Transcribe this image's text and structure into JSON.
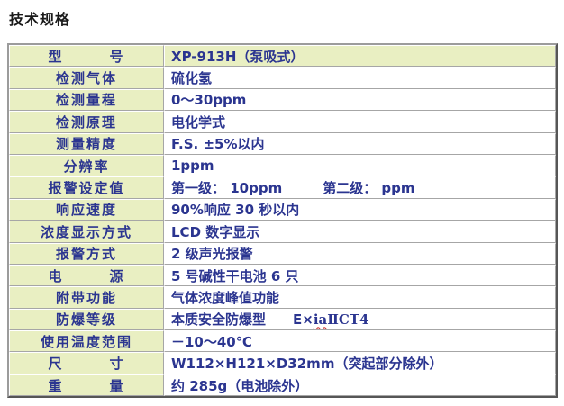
{
  "title": "技术规格",
  "colors": {
    "label_cell_bg": "#e9efc2",
    "value_cell_bg": "#ffffff",
    "table_text": "#2b3590",
    "title_text": "#1a1a1a",
    "border_light": "#ffffff",
    "border_gray": "#a6a6a6",
    "border_dark": "#565656",
    "spellcheck_underline": "#cc2a2a"
  },
  "table": {
    "rows": [
      {
        "label": "型　　　号",
        "value": "XP-913H（泵吸式）",
        "header": true
      },
      {
        "label": "检测气体",
        "value": "硫化氢"
      },
      {
        "label": "检测量程",
        "value": "0～30ppm"
      },
      {
        "label": "检测原理",
        "value": "电化学式"
      },
      {
        "label": "测量精度",
        "value": "F.S. ±5%以内"
      },
      {
        "label": "分辨率",
        "value": "1ppm"
      },
      {
        "label": "报警设定值",
        "value": "第一级： 10ppm　　　第二级： ppm"
      },
      {
        "label": "响应速度",
        "value": "90%响应 30 秒以内"
      },
      {
        "label": "浓度显示方式",
        "value": "LCD 数字显示"
      },
      {
        "label": "报警方式",
        "value": "2 级声光报警"
      },
      {
        "label": "电　　　源",
        "value": "5 号碱性干电池 6 只"
      },
      {
        "label": "附带功能",
        "value": "气体浓度峰值功能"
      },
      {
        "label": "防爆等级",
        "value_parts": [
          {
            "t": "本质安全防爆型　　E×"
          },
          {
            "t": "ia",
            "c": "misspell"
          },
          {
            "t": "ⅡCT4",
            "c": "serif"
          }
        ]
      },
      {
        "label": "使用温度范围",
        "value": "－10～40℃"
      },
      {
        "label": "尺　　　寸",
        "value": "W112×H121×D32mm（突起部分除外）"
      },
      {
        "label": "重　　　量",
        "value": "约 285g（电池除外）"
      }
    ]
  }
}
